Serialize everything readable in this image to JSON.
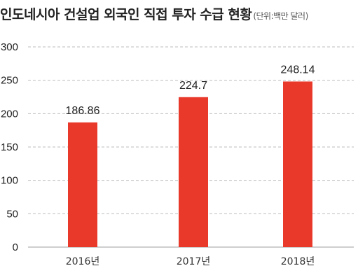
{
  "chart_data": {
    "type": "bar",
    "title": "인도네시아 건설업 외국인 직접 투자 수급 현황",
    "unit": "(단위:백만 달러)",
    "categories": [
      "2016년",
      "2017년",
      "2018년"
    ],
    "values": [
      186.86,
      224.7,
      248.14
    ],
    "value_labels": [
      "186.86",
      "224.7",
      "248.14"
    ],
    "yticks": [
      "0",
      "50",
      "100",
      "150",
      "200",
      "250",
      "300"
    ],
    "ylim": [
      0,
      300
    ],
    "grid": true,
    "bar_color": "#e8392b",
    "grid_color": "#bdbdbd"
  }
}
